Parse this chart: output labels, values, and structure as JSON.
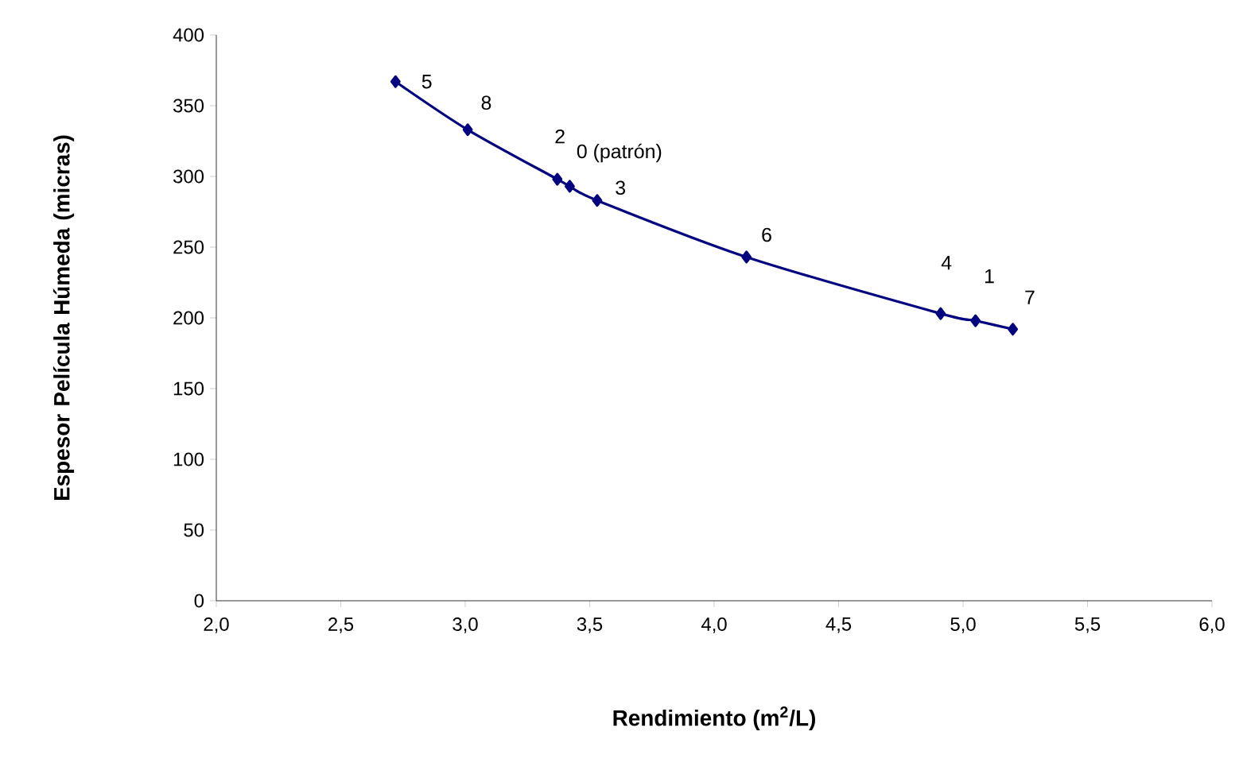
{
  "chart_data": {
    "type": "line",
    "xlabel": "Rendimiento (m$^{2}$/L)",
    "ylabel": "Espesor Película Húmeda (micras)",
    "x": [
      2.72,
      3.01,
      3.37,
      3.42,
      3.53,
      4.13,
      4.91,
      5.05,
      5.2
    ],
    "series": [
      {
        "color": "#000080",
        "values": [
          367,
          333,
          298,
          293,
          283,
          243,
          203,
          198,
          192
        ]
      }
    ],
    "marker": "diamond",
    "line_style": "solid",
    "xlim": [
      2.0,
      6.0
    ],
    "ylim": [
      0,
      400
    ],
    "xticks": [
      {
        "value": 2.0,
        "label": "2,0"
      },
      {
        "value": 2.5,
        "label": "2,5"
      },
      {
        "value": 3.0,
        "label": "3,0"
      },
      {
        "value": 3.5,
        "label": "3,5"
      },
      {
        "value": 4.0,
        "label": "4,0"
      },
      {
        "value": 4.5,
        "label": "4,5"
      },
      {
        "value": 5.0,
        "label": "5,0"
      },
      {
        "value": 5.5,
        "label": "5,5"
      },
      {
        "value": 6.0,
        "label": "6,0"
      }
    ],
    "yticks": [
      0,
      50,
      100,
      150,
      200,
      250,
      300,
      350,
      400
    ],
    "annotations": [
      {
        "text": "5",
        "x": 2.72,
        "y": 367
      },
      {
        "text": "8",
        "x": 3.01,
        "y": 333
      },
      {
        "text": "2",
        "x": 3.37,
        "y": 298
      },
      {
        "text": "0 (patrón)",
        "x": 3.42,
        "y": 293
      },
      {
        "text": "3",
        "x": 3.53,
        "y": 283
      },
      {
        "text": "6",
        "x": 4.13,
        "y": 243
      },
      {
        "text": "4",
        "x": 4.91,
        "y": 203
      },
      {
        "text": "1",
        "x": 5.05,
        "y": 198
      },
      {
        "text": "7",
        "x": 5.2,
        "y": 192
      }
    ]
  }
}
